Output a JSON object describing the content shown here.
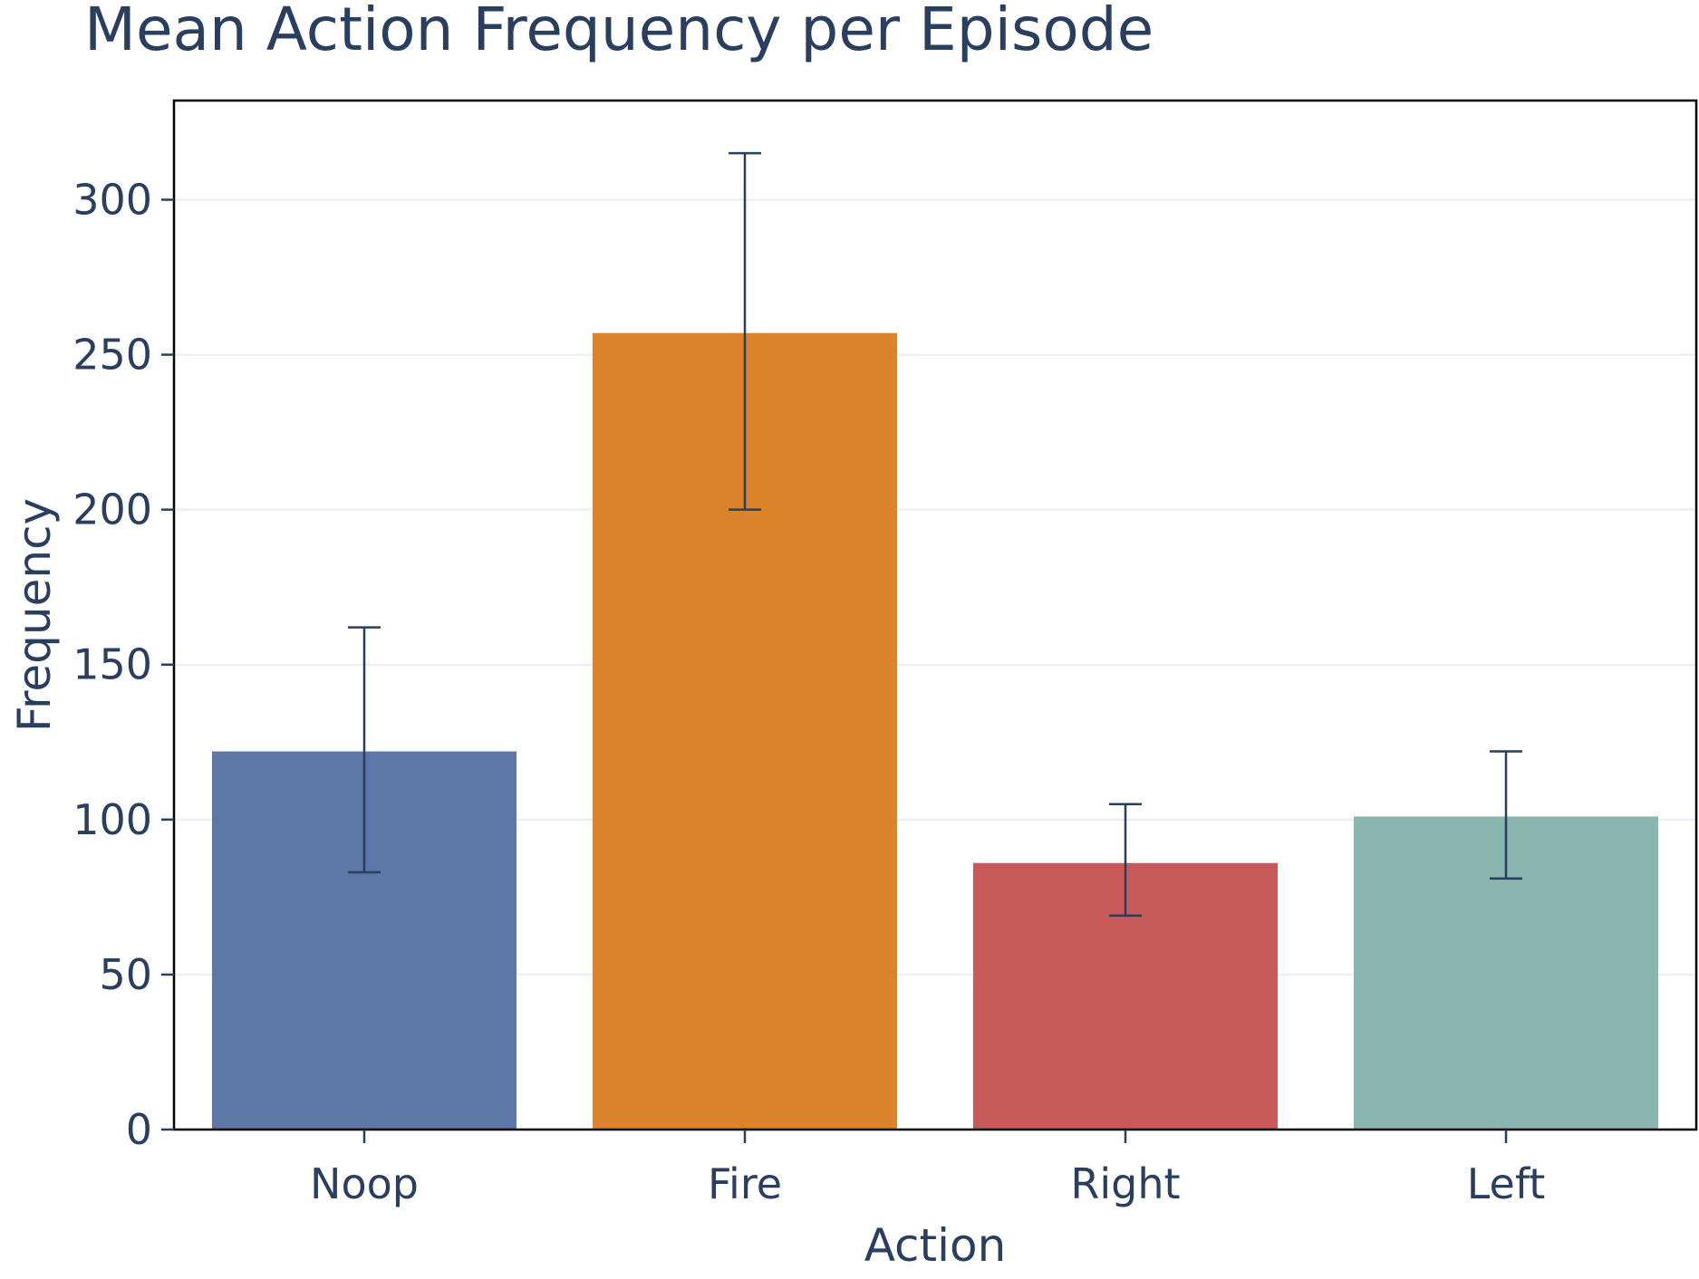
{
  "chart_data": {
    "type": "bar",
    "title": "Mean Action Frequency per Episode",
    "xlabel": "Action",
    "ylabel": "Frequency",
    "categories": [
      "Noop",
      "Fire",
      "Right",
      "Left"
    ],
    "values": [
      122,
      257,
      86,
      101
    ],
    "error_low": [
      83,
      200,
      69,
      81
    ],
    "error_high": [
      162,
      315,
      105,
      122
    ],
    "colors": [
      "#5d78a6",
      "#db842b",
      "#c85a5a",
      "#8bb5af"
    ],
    "ylim": [
      0,
      332
    ],
    "yticks": [
      0,
      50,
      100,
      150,
      200,
      250,
      300
    ],
    "grid": true,
    "legend": "none"
  }
}
